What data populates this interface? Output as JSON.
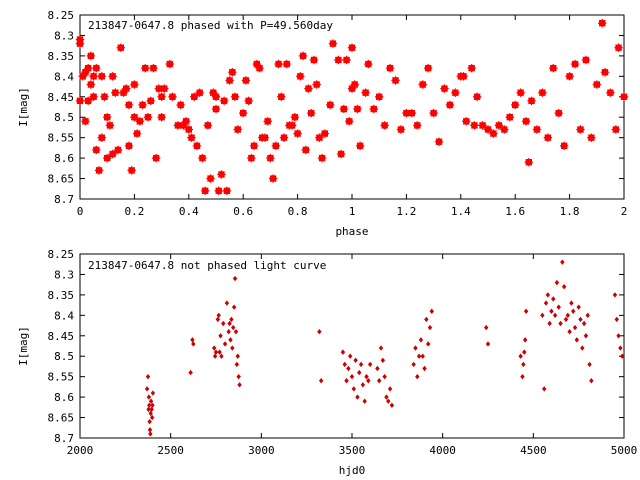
{
  "chart_data": [
    {
      "type": "scatter",
      "title": "213847-0647.8 phased with P=49.560day",
      "xlabel": "phase",
      "ylabel": "I[mag]",
      "xlim": [
        0,
        2
      ],
      "ylim": [
        8.25,
        8.7
      ],
      "y_inverted": true,
      "x_ticks": [
        "0",
        "0.2",
        "0.4",
        "0.6",
        "0.8",
        "1",
        "1.2",
        "1.4",
        "1.6",
        "1.8",
        "2"
      ],
      "y_ticks": [
        "8.25",
        "8.3",
        "8.35",
        "8.4",
        "8.45",
        "8.5",
        "8.55",
        "8.6",
        "8.65",
        "8.7"
      ],
      "marker_color": "#ff0000",
      "grid": false,
      "x": [
        0.0,
        0.0,
        0.0,
        0.01,
        0.02,
        0.02,
        0.03,
        0.03,
        0.04,
        0.04,
        0.05,
        0.05,
        0.06,
        0.06,
        0.07,
        0.08,
        0.08,
        0.09,
        0.1,
        0.1,
        0.11,
        0.12,
        0.12,
        0.13,
        0.14,
        0.15,
        0.16,
        0.17,
        0.18,
        0.18,
        0.19,
        0.2,
        0.2,
        0.21,
        0.22,
        0.23,
        0.24,
        0.25,
        0.26,
        0.27,
        0.28,
        0.29,
        0.3,
        0.3,
        0.31,
        0.33,
        0.34,
        0.36,
        0.37,
        0.38,
        0.39,
        0.4,
        0.41,
        0.42,
        0.43,
        0.44,
        0.45,
        0.46,
        0.47,
        0.48,
        0.49,
        0.5,
        0.5,
        0.51,
        0.52,
        0.53,
        0.54,
        0.55,
        0.56,
        0.57,
        0.58,
        0.6,
        0.61,
        0.62,
        0.63,
        0.64,
        0.65,
        0.66,
        0.67,
        0.68,
        0.69,
        0.7,
        0.71,
        0.72,
        0.73,
        0.74,
        0.75,
        0.76,
        0.77,
        0.78,
        0.79,
        0.8,
        0.81,
        0.82,
        0.83,
        0.84,
        0.85,
        0.86,
        0.87,
        0.88,
        0.89,
        0.9,
        0.92,
        0.93,
        0.95,
        0.96,
        0.97,
        0.98,
        0.99,
        1.0,
        1.0,
        1.01,
        1.02,
        1.03,
        1.05,
        1.06,
        1.08,
        1.1,
        1.12,
        1.14,
        1.16,
        1.18,
        1.2,
        1.22,
        1.24,
        1.26,
        1.28,
        1.3,
        1.32,
        1.34,
        1.36,
        1.38,
        1.4,
        1.41,
        1.42,
        1.44,
        1.45,
        1.46,
        1.48,
        1.5,
        1.52,
        1.54,
        1.56,
        1.58,
        1.6,
        1.62,
        1.64,
        1.65,
        1.66,
        1.68,
        1.7,
        1.72,
        1.74,
        1.76,
        1.78,
        1.8,
        1.82,
        1.84,
        1.86,
        1.88,
        1.9,
        1.92,
        1.93,
        1.95,
        1.97,
        1.98,
        2.0
      ],
      "y": [
        8.32,
        8.31,
        8.46,
        8.4,
        8.39,
        8.51,
        8.38,
        8.46,
        8.35,
        8.42,
        8.4,
        8.45,
        8.38,
        8.58,
        8.63,
        8.4,
        8.55,
        8.45,
        8.6,
        8.5,
        8.52,
        8.4,
        8.59,
        8.44,
        8.58,
        8.33,
        8.44,
        8.43,
        8.47,
        8.57,
        8.63,
        8.42,
        8.5,
        8.54,
        8.51,
        8.47,
        8.38,
        8.5,
        8.46,
        8.38,
        8.6,
        8.43,
        8.45,
        8.5,
        8.43,
        8.37,
        8.45,
        8.52,
        8.47,
        8.52,
        8.51,
        8.53,
        8.55,
        8.45,
        8.57,
        8.44,
        8.6,
        8.68,
        8.52,
        8.65,
        8.44,
        8.45,
        8.48,
        8.68,
        8.64,
        8.46,
        8.68,
        8.41,
        8.39,
        8.45,
        8.53,
        8.49,
        8.41,
        8.46,
        8.6,
        8.57,
        8.37,
        8.38,
        8.55,
        8.55,
        8.51,
        8.6,
        8.65,
        8.57,
        8.37,
        8.45,
        8.55,
        8.37,
        8.52,
        8.52,
        8.5,
        8.54,
        8.4,
        8.35,
        8.58,
        8.43,
        8.49,
        8.36,
        8.42,
        8.55,
        8.6,
        8.54,
        8.47,
        8.32,
        8.36,
        8.59,
        8.48,
        8.36,
        8.51,
        8.43,
        8.33,
        8.42,
        8.48,
        8.57,
        8.44,
        8.37,
        8.48,
        8.45,
        8.52,
        8.38,
        8.41,
        8.53,
        8.49,
        8.49,
        8.52,
        8.42,
        8.38,
        8.49,
        8.56,
        8.43,
        8.47,
        8.44,
        8.4,
        8.4,
        8.51,
        8.38,
        8.52,
        8.45,
        8.52,
        8.53,
        8.54,
        8.52,
        8.53,
        8.5,
        8.47,
        8.44,
        8.51,
        8.61,
        8.46,
        8.53,
        8.44,
        8.55,
        8.38,
        8.49,
        8.57,
        8.4,
        8.37,
        8.53,
        8.36,
        8.55,
        8.42,
        8.27,
        8.39,
        8.44,
        8.53,
        8.33,
        8.45
      ]
    },
    {
      "type": "scatter",
      "title": "213847-0647.8 not phased light curve",
      "xlabel": "hjd0",
      "ylabel": "I[mag]",
      "xlim": [
        2000,
        5000
      ],
      "ylim": [
        8.25,
        8.7
      ],
      "y_inverted": true,
      "x_ticks": [
        "2000",
        "2500",
        "3000",
        "3500",
        "4000",
        "4500",
        "5000"
      ],
      "y_ticks": [
        "8.25",
        "8.3",
        "8.35",
        "8.4",
        "8.45",
        "8.5",
        "8.55",
        "8.6",
        "8.65",
        "8.7"
      ],
      "marker_color": "#cc0000",
      "grid": false,
      "x": [
        2370,
        2375,
        2378,
        2380,
        2382,
        2384,
        2386,
        2388,
        2390,
        2392,
        2395,
        2398,
        2400,
        2402,
        2610,
        2620,
        2625,
        2740,
        2745,
        2750,
        2760,
        2765,
        2770,
        2775,
        2780,
        2790,
        2800,
        2810,
        2820,
        2825,
        2830,
        2835,
        2840,
        2845,
        2850,
        2855,
        2860,
        2865,
        2870,
        2875,
        2880,
        3320,
        3330,
        3450,
        3460,
        3470,
        3480,
        3490,
        3500,
        3510,
        3520,
        3530,
        3540,
        3550,
        3560,
        3570,
        3580,
        3590,
        3600,
        3640,
        3650,
        3660,
        3670,
        3680,
        3690,
        3700,
        3710,
        3720,
        3840,
        3850,
        3860,
        3870,
        3880,
        3890,
        3900,
        3910,
        3920,
        3930,
        3940,
        4240,
        4250,
        4430,
        4440,
        4445,
        4450,
        4455,
        4460,
        4550,
        4560,
        4570,
        4580,
        4590,
        4600,
        4610,
        4620,
        4630,
        4640,
        4650,
        4660,
        4670,
        4680,
        4690,
        4700,
        4710,
        4720,
        4730,
        4740,
        4750,
        4760,
        4770,
        4780,
        4790,
        4800,
        4810,
        4820,
        4950,
        4960,
        4970,
        4980,
        4990
      ],
      "y": [
        8.58,
        8.55,
        8.63,
        8.6,
        8.62,
        8.66,
        8.68,
        8.69,
        8.64,
        8.61,
        8.63,
        8.65,
        8.62,
        8.59,
        8.54,
        8.46,
        8.47,
        8.48,
        8.5,
        8.49,
        8.41,
        8.4,
        8.49,
        8.45,
        8.5,
        8.42,
        8.47,
        8.37,
        8.44,
        8.42,
        8.46,
        8.41,
        8.48,
        8.43,
        8.38,
        8.31,
        8.44,
        8.52,
        8.5,
        8.55,
        8.57,
        8.44,
        8.56,
        8.49,
        8.52,
        8.56,
        8.53,
        8.5,
        8.55,
        8.58,
        8.51,
        8.6,
        8.54,
        8.52,
        8.57,
        8.61,
        8.55,
        8.56,
        8.52,
        8.53,
        8.56,
        8.48,
        8.51,
        8.55,
        8.6,
        8.61,
        8.58,
        8.62,
        8.52,
        8.48,
        8.55,
        8.5,
        8.46,
        8.5,
        8.53,
        8.41,
        8.47,
        8.43,
        8.39,
        8.43,
        8.47,
        8.5,
        8.55,
        8.52,
        8.49,
        8.46,
        8.39,
        8.4,
        8.58,
        8.37,
        8.35,
        8.42,
        8.39,
        8.36,
        8.4,
        8.32,
        8.38,
        8.42,
        8.27,
        8.33,
        8.41,
        8.4,
        8.44,
        8.37,
        8.39,
        8.43,
        8.46,
        8.38,
        8.41,
        8.48,
        8.42,
        8.45,
        8.4,
        8.52,
        8.56,
        8.35,
        8.41,
        8.45,
        8.48,
        8.5
      ]
    }
  ]
}
